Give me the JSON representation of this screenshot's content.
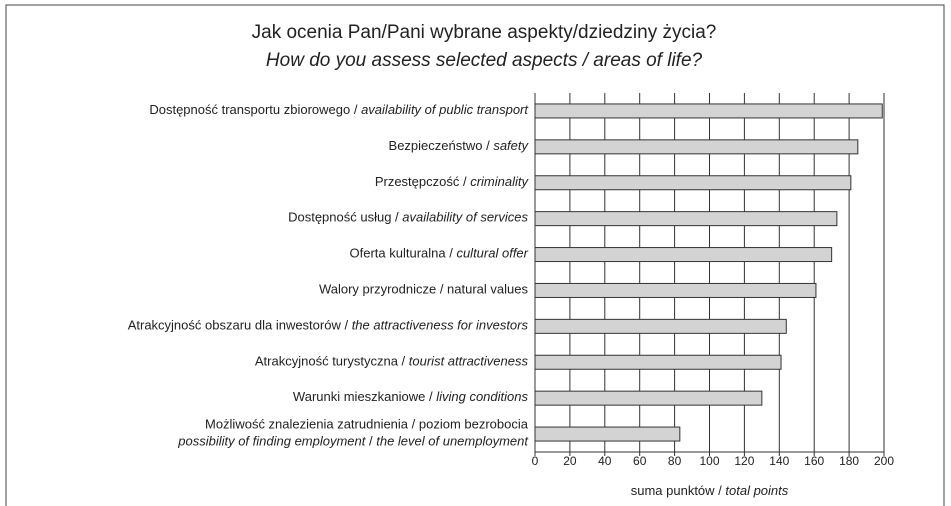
{
  "chart_data": {
    "type": "bar",
    "orientation": "horizontal",
    "title": "Jak ocenia Pan/Pani wybrane aspekty/dziedziny życia?",
    "subtitle": "How do you assess selected aspects / areas of life?",
    "x_label": [
      {
        "text": "suma punktów / ",
        "italic": false
      },
      {
        "text": "total points",
        "italic": true
      }
    ],
    "categories": [
      [
        [
          {
            "text": "Dostępność transportu zbiorowego / ",
            "italic": false
          },
          {
            "text": "availability of public transport",
            "italic": true
          }
        ]
      ],
      [
        [
          {
            "text": "Bezpieczeństwo / ",
            "italic": false
          },
          {
            "text": "safety",
            "italic": true
          }
        ]
      ],
      [
        [
          {
            "text": "Przestępczość / ",
            "italic": false
          },
          {
            "text": "criminality",
            "italic": true
          }
        ]
      ],
      [
        [
          {
            "text": "Dostępność usług / ",
            "italic": false
          },
          {
            "text": "availability of services",
            "italic": true
          }
        ]
      ],
      [
        [
          {
            "text": "Oferta kulturalna / ",
            "italic": false
          },
          {
            "text": "cultural offer",
            "italic": true
          }
        ]
      ],
      [
        [
          {
            "text": "Walory przyrodnicze / natural values",
            "italic": false
          }
        ]
      ],
      [
        [
          {
            "text": "Atrakcyjność obszaru dla inwestorów / ",
            "italic": false
          },
          {
            "text": "the attractiveness for investors",
            "italic": true
          }
        ]
      ],
      [
        [
          {
            "text": "Atrakcyjność turystyczna / ",
            "italic": false
          },
          {
            "text": "tourist attractiveness",
            "italic": true
          }
        ]
      ],
      [
        [
          {
            "text": "Warunki mieszkaniowe / ",
            "italic": false
          },
          {
            "text": "living conditions",
            "italic": true
          }
        ]
      ],
      [
        [
          {
            "text": "Możliwość znalezienia zatrudnienia / poziom bezrobocia",
            "italic": false
          }
        ],
        [
          {
            "text": "possibility of finding employment",
            "italic": true
          },
          {
            "text": " / ",
            "italic": false
          },
          {
            "text": "the level of unemployment",
            "italic": true
          }
        ]
      ]
    ],
    "values": [
      199,
      185,
      181,
      173,
      170,
      161,
      144,
      141,
      130,
      83
    ],
    "color": "#d3d3d3",
    "xlim": [
      0,
      200
    ],
    "xticks": [
      0,
      20,
      40,
      60,
      80,
      100,
      120,
      140,
      160,
      180,
      200
    ],
    "grid": true
  }
}
